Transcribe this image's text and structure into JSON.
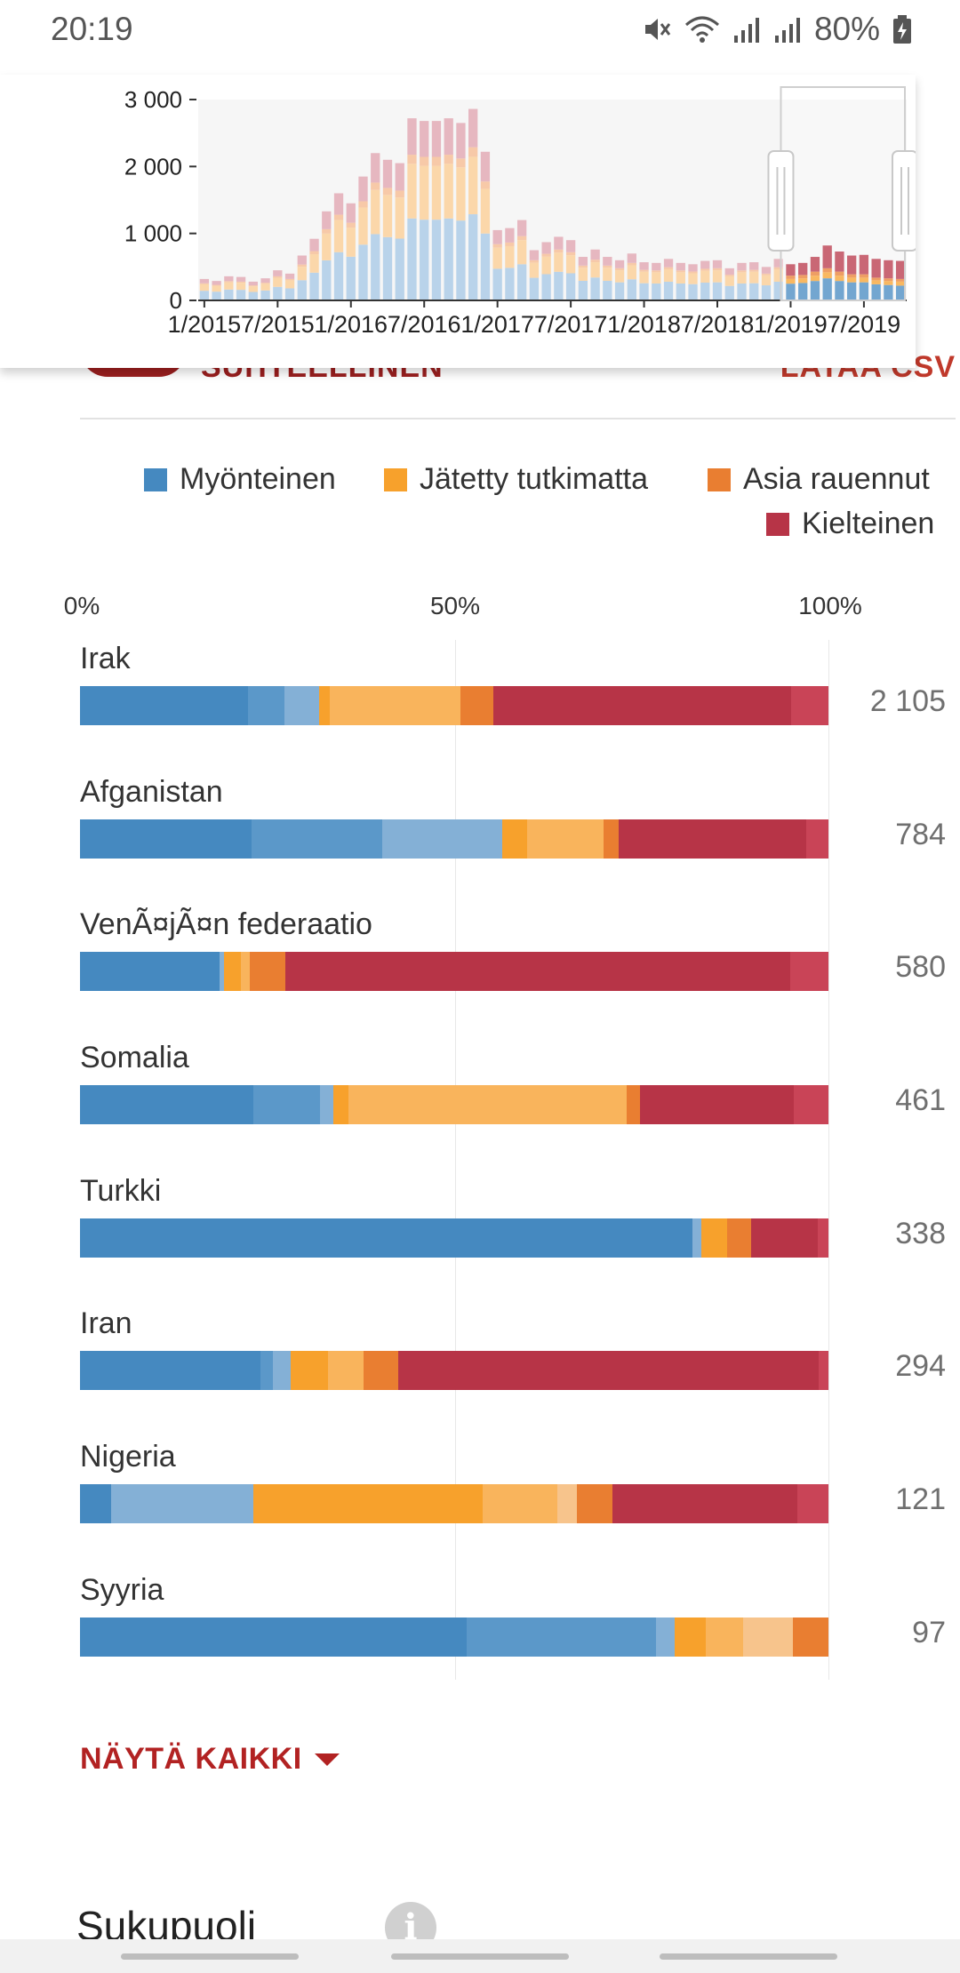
{
  "status_bar": {
    "time": "20:19",
    "battery": "80%"
  },
  "overview_chart": {
    "y_ticks": [
      "3 000",
      "2 000",
      "1 000",
      "0"
    ],
    "x_ticks": [
      "1/2015",
      "7/2015",
      "1/2016",
      "7/2016",
      "1/2017",
      "7/2017",
      "1/2018",
      "7/2018",
      "1/2019",
      "7/2019"
    ]
  },
  "controls": {
    "toggle_label": "SUHTEELLINEN",
    "csv_label": "LATAA CSV"
  },
  "legend": [
    {
      "label": "Myönteinen",
      "color": "#4589c0"
    },
    {
      "label": "Jätetty tutkimatta",
      "color": "#f7a12c"
    },
    {
      "label": "Asia rauennut",
      "color": "#e97e31"
    },
    {
      "label": "Kielteinen",
      "color": "#b73447"
    }
  ],
  "axis_labels": [
    "0%",
    "50%",
    "100%"
  ],
  "show_all": "NÄYTÄ KAIKKI",
  "next_section": {
    "title": "Sukupuoli",
    "info_glyph": "i"
  },
  "chart_data": [
    {
      "type": "bar",
      "title": "",
      "x": [
        "1/2015",
        "2/2015",
        "3/2015",
        "4/2015",
        "5/2015",
        "6/2015",
        "7/2015",
        "8/2015",
        "9/2015",
        "10/2015",
        "11/2015",
        "12/2015",
        "1/2016",
        "2/2016",
        "3/2016",
        "4/2016",
        "5/2016",
        "6/2016",
        "7/2016",
        "8/2016",
        "9/2016",
        "10/2016",
        "11/2016",
        "12/2016",
        "1/2017",
        "2/2017",
        "3/2017",
        "4/2017",
        "5/2017",
        "6/2017",
        "7/2017",
        "8/2017",
        "9/2017",
        "10/2017",
        "11/2017",
        "12/2017",
        "1/2018",
        "2/2018",
        "3/2018",
        "4/2018",
        "5/2018",
        "6/2018",
        "7/2018",
        "8/2018",
        "9/2018",
        "10/2018",
        "11/2018",
        "12/2018",
        "1/2019",
        "2/2019",
        "3/2019",
        "4/2019",
        "5/2019",
        "6/2019",
        "7/2019",
        "8/2019",
        "9/2019",
        "10/2019"
      ],
      "ylim": [
        0,
        3000
      ],
      "yticks": [
        0,
        1000,
        2000,
        3000
      ],
      "totals": [
        320,
        290,
        360,
        350,
        280,
        330,
        450,
        400,
        670,
        920,
        1330,
        1600,
        1450,
        1850,
        2200,
        2100,
        2050,
        2720,
        2680,
        2680,
        2720,
        2650,
        2860,
        2220,
        1050,
        1080,
        1200,
        750,
        870,
        950,
        900,
        650,
        760,
        650,
        600,
        700,
        570,
        560,
        620,
        560,
        540,
        590,
        600,
        480,
        560,
        570,
        500,
        620,
        570,
        580,
        700,
        840,
        780,
        680,
        690,
        620,
        620,
        610
      ],
      "recent_series": [
        {
          "name": "Myönteinen",
          "values": [
            250,
            260,
            290,
            330,
            290,
            270,
            270,
            240,
            230,
            220
          ]
        },
        {
          "name": "Jätetty tutkimatta",
          "values": [
            70,
            70,
            80,
            90,
            80,
            70,
            70,
            60,
            60,
            60
          ]
        },
        {
          "name": "Asia rauennut",
          "values": [
            50,
            50,
            60,
            60,
            60,
            50,
            50,
            40,
            40,
            40
          ]
        },
        {
          "name": "Kielteinen",
          "values": [
            170,
            180,
            220,
            340,
            300,
            280,
            290,
            280,
            270,
            270
          ]
        }
      ]
    },
    {
      "type": "bar",
      "orientation": "horizontal",
      "stacked": "percent",
      "xticks": [
        "0%",
        "50%",
        "100%"
      ],
      "rows": [
        {
          "label": "Irak",
          "total": "2 105",
          "segments": [
            {
              "color": "#4589c0",
              "value": 22.5
            },
            {
              "color": "#5b98c9",
              "value": 4.8
            },
            {
              "color": "#84b0d6",
              "value": 4.6
            },
            {
              "color": "#f7a12c",
              "value": 1.5
            },
            {
              "color": "#f9b45c",
              "value": 17.4
            },
            {
              "color": "#e97e31",
              "value": 4.4
            },
            {
              "color": "#b73447",
              "value": 39.8
            },
            {
              "color": "#c94457",
              "value": 5.0
            }
          ]
        },
        {
          "label": "Afganistan",
          "total": "784",
          "segments": [
            {
              "color": "#4589c0",
              "value": 22.9
            },
            {
              "color": "#5b98c9",
              "value": 17.5
            },
            {
              "color": "#84b0d6",
              "value": 16.0
            },
            {
              "color": "#f7a12c",
              "value": 3.3
            },
            {
              "color": "#f9b45c",
              "value": 10.2
            },
            {
              "color": "#e97e31",
              "value": 2.1
            },
            {
              "color": "#b73447",
              "value": 25.0
            },
            {
              "color": "#c94457",
              "value": 3.0
            }
          ]
        },
        {
          "label": "VenÃ¤jÃ¤n federaatio",
          "total": "580",
          "segments": [
            {
              "color": "#4589c0",
              "value": 18.7
            },
            {
              "color": "#84b0d6",
              "value": 0.5
            },
            {
              "color": "#f7a12c",
              "value": 2.3
            },
            {
              "color": "#f9b45c",
              "value": 1.2
            },
            {
              "color": "#e97e31",
              "value": 4.7
            },
            {
              "color": "#b73447",
              "value": 67.5
            },
            {
              "color": "#c94457",
              "value": 5.1
            }
          ]
        },
        {
          "label": "Somalia",
          "total": "461",
          "segments": [
            {
              "color": "#4589c0",
              "value": 23.2
            },
            {
              "color": "#5b98c9",
              "value": 8.9
            },
            {
              "color": "#84b0d6",
              "value": 1.8
            },
            {
              "color": "#f7a12c",
              "value": 2.0
            },
            {
              "color": "#f9b45c",
              "value": 37.1
            },
            {
              "color": "#e97e31",
              "value": 1.8
            },
            {
              "color": "#b73447",
              "value": 20.6
            },
            {
              "color": "#c94457",
              "value": 4.6
            }
          ]
        },
        {
          "label": "Turkki",
          "total": "338",
          "segments": [
            {
              "color": "#4589c0",
              "value": 81.8
            },
            {
              "color": "#84b0d6",
              "value": 1.2
            },
            {
              "color": "#f7a12c",
              "value": 3.5
            },
            {
              "color": "#e97e31",
              "value": 3.2
            },
            {
              "color": "#b73447",
              "value": 8.9
            },
            {
              "color": "#c94457",
              "value": 1.4
            }
          ]
        },
        {
          "label": "Iran",
          "total": "294",
          "segments": [
            {
              "color": "#4589c0",
              "value": 24.1
            },
            {
              "color": "#5b98c9",
              "value": 1.7
            },
            {
              "color": "#84b0d6",
              "value": 2.4
            },
            {
              "color": "#f7a12c",
              "value": 4.9
            },
            {
              "color": "#f9b45c",
              "value": 4.8
            },
            {
              "color": "#e97e31",
              "value": 4.6
            },
            {
              "color": "#b73447",
              "value": 56.2
            },
            {
              "color": "#c94457",
              "value": 1.3
            }
          ]
        },
        {
          "label": "Nigeria",
          "total": "121",
          "segments": [
            {
              "color": "#4589c0",
              "value": 4.2
            },
            {
              "color": "#84b0d6",
              "value": 19.0
            },
            {
              "color": "#f7a12c",
              "value": 30.6
            },
            {
              "color": "#f9b45c",
              "value": 10.0
            },
            {
              "color": "#f7c48c",
              "value": 2.6
            },
            {
              "color": "#e97e31",
              "value": 4.8
            },
            {
              "color": "#b73447",
              "value": 24.7
            },
            {
              "color": "#c94457",
              "value": 4.1
            }
          ]
        },
        {
          "label": "Syyria",
          "total": "97",
          "segments": [
            {
              "color": "#4589c0",
              "value": 51.7
            },
            {
              "color": "#5b98c9",
              "value": 25.3
            },
            {
              "color": "#84b0d6",
              "value": 2.5
            },
            {
              "color": "#f7a12c",
              "value": 4.1
            },
            {
              "color": "#f9b45c",
              "value": 5.0
            },
            {
              "color": "#f7c48c",
              "value": 6.6
            },
            {
              "color": "#e97e31",
              "value": 4.8
            }
          ]
        }
      ]
    }
  ]
}
